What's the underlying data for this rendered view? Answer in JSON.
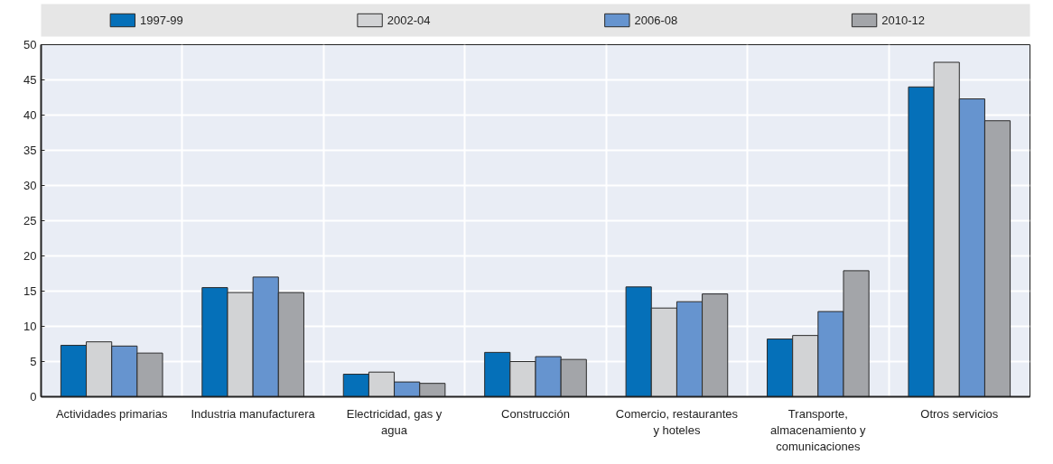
{
  "chart_data": {
    "type": "bar",
    "categories": [
      "Actividades primarias",
      "Industria manufacturera",
      "Electricidad, gas y agua",
      "Construcción",
      "Comercio, restaurantes y hoteles",
      "Transporte, almacenamiento y comunicaciones",
      "Otros servicios"
    ],
    "series": [
      {
        "name": "1997-99",
        "color": "#0570b9",
        "values": [
          7.3,
          15.5,
          3.2,
          6.3,
          15.6,
          8.2,
          44.0
        ]
      },
      {
        "name": "2002-04",
        "color": "#d2d3d5",
        "values": [
          7.8,
          14.8,
          3.5,
          5.0,
          12.6,
          8.7,
          47.5
        ]
      },
      {
        "name": "2006-08",
        "color": "#6694cf",
        "values": [
          7.2,
          17.0,
          2.1,
          5.7,
          13.5,
          12.1,
          42.3
        ]
      },
      {
        "name": "2010-12",
        "color": "#a3a5a9",
        "values": [
          6.2,
          14.8,
          1.9,
          5.3,
          14.6,
          17.9,
          39.2
        ]
      }
    ],
    "ylim": [
      0,
      50
    ],
    "yticks": [
      0,
      5,
      10,
      15,
      20,
      25,
      30,
      35,
      40,
      45,
      50
    ],
    "grid": true,
    "legend": "top"
  }
}
